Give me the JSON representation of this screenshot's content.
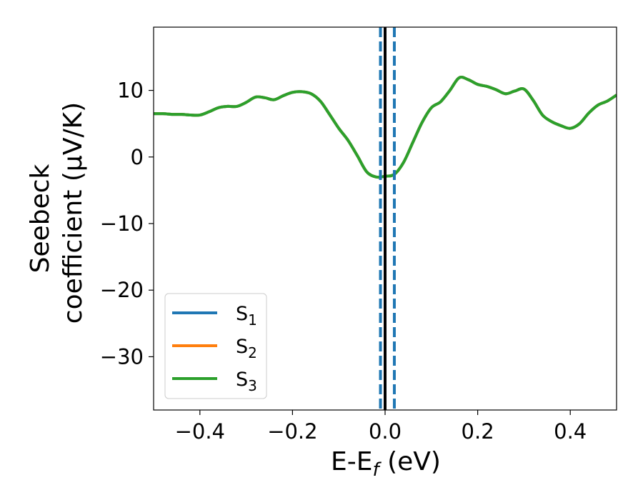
{
  "chart_data": {
    "type": "line",
    "title": "",
    "xlabel": {
      "main": "E-E",
      "subscript": "f",
      "suffix": " (eV)"
    },
    "ylabel": {
      "line1": "Seebeck",
      "line2": "coefficient  (μV/K)"
    },
    "xlim": [
      -0.5,
      0.5
    ],
    "ylim": [
      -38,
      19.5
    ],
    "xticks": [
      {
        "value": -0.4,
        "label": "−0.4"
      },
      {
        "value": -0.2,
        "label": "−0.2"
      },
      {
        "value": 0.0,
        "label": "0.0"
      },
      {
        "value": 0.2,
        "label": "0.2"
      },
      {
        "value": 0.4,
        "label": "0.4"
      }
    ],
    "yticks": [
      {
        "value": 10,
        "label": "10"
      },
      {
        "value": 0,
        "label": "0"
      },
      {
        "value": -10,
        "label": "−10"
      },
      {
        "value": -20,
        "label": "−20"
      },
      {
        "value": -30,
        "label": "−30"
      }
    ],
    "grid": false,
    "legend_position": "lower-left",
    "x": [
      -0.5,
      -0.48,
      -0.46,
      -0.44,
      -0.42,
      -0.4,
      -0.38,
      -0.36,
      -0.34,
      -0.32,
      -0.3,
      -0.28,
      -0.26,
      -0.24,
      -0.22,
      -0.2,
      -0.18,
      -0.16,
      -0.14,
      -0.12,
      -0.1,
      -0.08,
      -0.06,
      -0.04,
      -0.02,
      0.0,
      0.02,
      0.04,
      0.06,
      0.08,
      0.1,
      0.12,
      0.14,
      0.16,
      0.18,
      0.2,
      0.22,
      0.24,
      0.26,
      0.28,
      0.3,
      0.32,
      0.34,
      0.36,
      0.38,
      0.4,
      0.42,
      0.44,
      0.46,
      0.48,
      0.5
    ],
    "series": [
      {
        "name": "S",
        "name_sub": "1",
        "color": "#1f77b4",
        "values": [
          6.5,
          6.5,
          6.4,
          6.4,
          6.3,
          6.3,
          6.8,
          7.4,
          7.6,
          7.6,
          8.2,
          9.0,
          8.9,
          8.6,
          9.2,
          9.7,
          9.8,
          9.5,
          8.4,
          6.4,
          4.3,
          2.5,
          0.2,
          -2.2,
          -3.0,
          -2.9,
          -2.6,
          -0.8,
          2.2,
          5.2,
          7.4,
          8.3,
          10.0,
          11.9,
          11.6,
          10.9,
          10.6,
          10.1,
          9.5,
          9.9,
          10.2,
          8.5,
          6.3,
          5.3,
          4.7,
          4.3,
          5.0,
          6.6,
          7.8,
          8.4,
          9.3
        ]
      },
      {
        "name": "S",
        "name_sub": "2",
        "color": "#ff7f0e",
        "values": [
          6.5,
          6.5,
          6.4,
          6.4,
          6.3,
          6.3,
          6.8,
          7.4,
          7.6,
          7.6,
          8.2,
          9.0,
          8.9,
          8.6,
          9.2,
          9.7,
          9.8,
          9.5,
          8.4,
          6.4,
          4.3,
          2.5,
          0.2,
          -2.2,
          -3.0,
          -2.9,
          -2.6,
          -0.8,
          2.2,
          5.2,
          7.4,
          8.3,
          10.0,
          11.9,
          11.6,
          10.9,
          10.6,
          10.1,
          9.5,
          9.9,
          10.2,
          8.5,
          6.3,
          5.3,
          4.7,
          4.3,
          5.0,
          6.6,
          7.8,
          8.4,
          9.3
        ]
      },
      {
        "name": "S",
        "name_sub": "3",
        "color": "#2ca02c",
        "values": [
          6.5,
          6.5,
          6.4,
          6.4,
          6.3,
          6.3,
          6.8,
          7.4,
          7.6,
          7.6,
          8.2,
          9.0,
          8.9,
          8.6,
          9.2,
          9.7,
          9.8,
          9.5,
          8.4,
          6.4,
          4.3,
          2.5,
          0.2,
          -2.2,
          -3.0,
          -2.9,
          -2.6,
          -0.8,
          2.2,
          5.2,
          7.4,
          8.3,
          10.0,
          11.9,
          11.6,
          10.9,
          10.6,
          10.1,
          9.5,
          9.9,
          10.2,
          8.5,
          6.3,
          5.3,
          4.7,
          4.3,
          5.0,
          6.6,
          7.8,
          8.4,
          9.3
        ]
      }
    ],
    "vertical_lines": [
      {
        "x": -0.01,
        "style": "dashed",
        "color": "#1f77b4"
      },
      {
        "x": 0.02,
        "style": "dashed",
        "color": "#1f77b4"
      },
      {
        "x": 0.0,
        "style": "solid",
        "color": "#000000"
      }
    ]
  }
}
